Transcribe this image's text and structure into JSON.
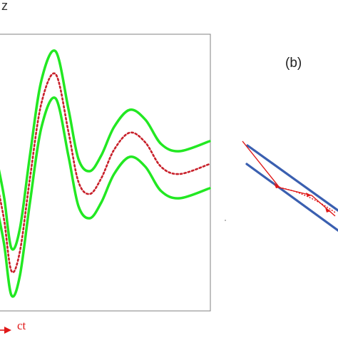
{
  "labels": {
    "z_axis": "z",
    "panel_b": "(b)",
    "ct_axis": "ct"
  },
  "colors": {
    "envelope": "#22e822",
    "center_path": "#c8202a",
    "frame": "#808080",
    "wedge": "#3a5fb0",
    "arrow": "#e01818"
  }
}
